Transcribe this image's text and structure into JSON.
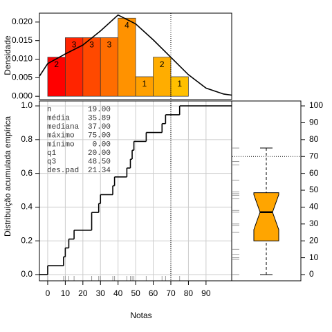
{
  "chart_data": [
    {
      "type": "histogram",
      "ylabel": "Densidade",
      "bins": [
        0,
        10,
        20,
        30,
        40,
        50,
        60,
        70,
        80
      ],
      "values": [
        0.01053,
        0.01579,
        0.01579,
        0.01579,
        0.02105,
        0.00526,
        0.01053,
        0.00526
      ],
      "counts": [
        2,
        3,
        3,
        3,
        4,
        1,
        2,
        1
      ],
      "colors": [
        "#FF0000",
        "#FF2400",
        "#FF4900",
        "#FF6D00",
        "#FF9200",
        "#FFA000",
        "#FFAD00",
        "#FFC000"
      ],
      "density": {
        "x": [
          -4.7,
          0,
          10,
          20,
          30,
          40,
          50,
          60,
          70,
          80,
          90,
          100,
          104.6
        ],
        "values": [
          0.0054,
          0.0088,
          0.0114,
          0.0138,
          0.0176,
          0.0219,
          0.0195,
          0.0152,
          0.0105,
          0.0058,
          0.0022,
          0.0006,
          0.0003
        ]
      },
      "reference_x": 70,
      "xlim": [
        -4.7,
        104.6
      ],
      "ylim": [
        -0.0009,
        0.0224
      ],
      "yticks": [
        {
          "value": 0,
          "label": "0.000"
        },
        {
          "value": 0.005,
          "label": "0.005"
        },
        {
          "value": 0.01,
          "label": "0.010"
        },
        {
          "value": 0.015,
          "label": "0.015"
        },
        {
          "value": 0.02,
          "label": "0.020"
        }
      ]
    },
    {
      "type": "ecdf",
      "ylabel": "Distribuição acumulada empírica",
      "xlabel": "Notas",
      "data": [
        0,
        9,
        10,
        12,
        15,
        25,
        25,
        29,
        30,
        37,
        38,
        45,
        47,
        48,
        49,
        56,
        65,
        67,
        75
      ],
      "stats": [
        [
          "n",
          "19.00"
        ],
        [
          "média",
          "35.89"
        ],
        [
          "mediana",
          "37.00"
        ],
        [
          "máximo",
          "75.00"
        ],
        [
          "mínimo",
          "0.00"
        ],
        [
          "q1",
          "20.00"
        ],
        [
          "q3",
          "48.50"
        ],
        [
          "des.pad",
          "21.34"
        ]
      ],
      "xlim": [
        -4.7,
        104.6
      ],
      "ylim": [
        -0.037,
        1.029
      ],
      "xticks": [
        0,
        10,
        20,
        30,
        40,
        50,
        60,
        70,
        80,
        90
      ],
      "yticks": [
        {
          "value": 0,
          "label": "0.0"
        },
        0.2,
        0.4,
        0.6,
        0.8,
        {
          "value": 1,
          "label": "1.0"
        }
      ],
      "grid": true,
      "reference_x": 70
    },
    {
      "type": "boxplot",
      "min": 0,
      "q1": 20,
      "median": 37,
      "q3": 48.5,
      "max": 75,
      "notch": [
        26.67,
        47.33
      ],
      "color": "#FFA500",
      "reference_y": 70,
      "ylim": [
        -3.7,
        102.9
      ],
      "yticks": [
        0,
        10,
        20,
        30,
        40,
        50,
        60,
        70,
        80,
        90,
        100
      ]
    }
  ]
}
